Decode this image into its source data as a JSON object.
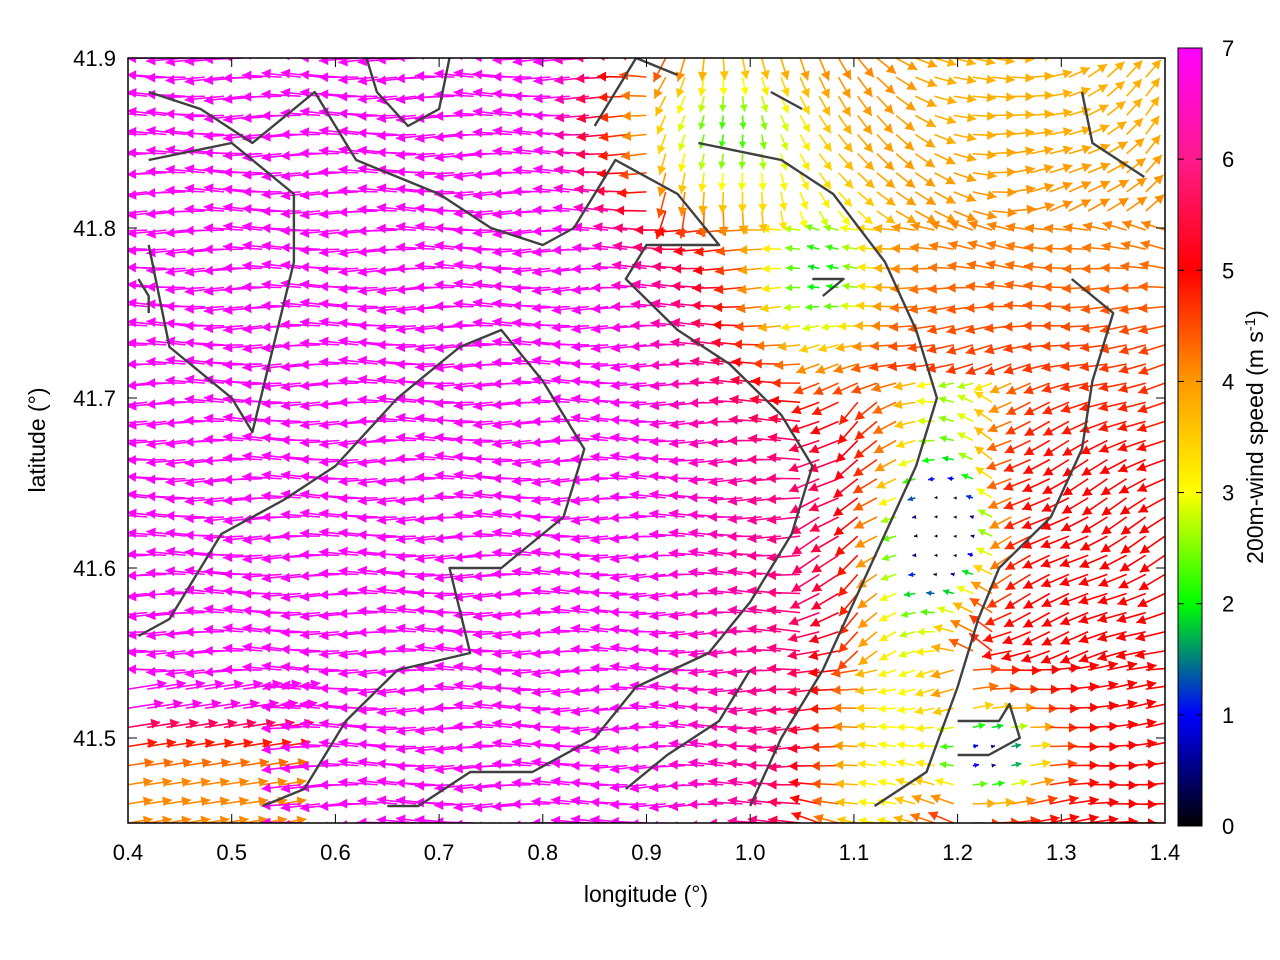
{
  "chart_data": {
    "type": "quiver",
    "title": "",
    "xlabel": "longitude (°)",
    "ylabel": "latitude (°)",
    "xlim": [
      0.4,
      1.4
    ],
    "ylim": [
      41.45,
      41.9
    ],
    "xticks": [
      0.4,
      0.5,
      0.6,
      0.7,
      0.8,
      0.9,
      1.0,
      1.1,
      1.2,
      1.3,
      1.4
    ],
    "xtick_labels": [
      "0.4",
      "0.5",
      "0.6",
      "0.7",
      "0.8",
      "0.9",
      "1.0",
      "1.1",
      "1.2",
      "1.3",
      "1.4"
    ],
    "yticks": [
      41.5,
      41.6,
      41.7,
      41.8,
      41.9
    ],
    "ytick_labels": [
      "41.5",
      "41.6",
      "41.7",
      "41.8",
      "41.9"
    ],
    "grid": false,
    "colorbar": {
      "label_main": "200m-wind speed (m s",
      "label_sup": "-1",
      "label_end": ")",
      "range": [
        0,
        7
      ],
      "ticks": [
        0,
        1,
        2,
        3,
        4,
        5,
        6,
        7
      ],
      "tick_labels": [
        "0",
        "1",
        "2",
        "3",
        "4",
        "5",
        "6",
        "7"
      ],
      "colors": [
        "#000000",
        "#0000ff",
        "#00ff00",
        "#ffff00",
        "#ff9900",
        "#ff0000",
        "#ff00ff"
      ]
    },
    "contour_color": "#404040",
    "wind_field_note_unused": null,
    "calm_zones": [
      {
        "lon": 1.19,
        "lat": 41.62,
        "r_lon": 0.045,
        "r_lat": 0.035
      },
      {
        "lon": 1.23,
        "lat": 41.49,
        "r_lon": 0.04,
        "r_lat": 0.025
      }
    ],
    "slow_zones": [
      {
        "lon": 0.97,
        "lat": 41.86,
        "r_lon": 0.09,
        "r_lat": 0.05
      },
      {
        "lon": 1.07,
        "lat": 41.77,
        "r_lon": 0.06,
        "r_lat": 0.05
      }
    ],
    "contours": [
      [
        [
          0.41,
          41.56
        ],
        [
          0.44,
          41.57
        ],
        [
          0.49,
          41.62
        ],
        [
          0.55,
          41.64
        ],
        [
          0.6,
          41.66
        ],
        [
          0.66,
          41.7
        ],
        [
          0.72,
          41.73
        ],
        [
          0.76,
          41.74
        ],
        [
          0.8,
          41.71
        ],
        [
          0.84,
          41.67
        ],
        [
          0.82,
          41.63
        ],
        [
          0.76,
          41.6
        ],
        [
          0.71,
          41.6
        ],
        [
          0.73,
          41.55
        ],
        [
          0.66,
          41.54
        ],
        [
          0.61,
          41.51
        ],
        [
          0.57,
          41.47
        ],
        [
          0.53,
          41.46
        ]
      ],
      [
        [
          0.42,
          41.84
        ],
        [
          0.5,
          41.85
        ],
        [
          0.56,
          41.82
        ],
        [
          0.56,
          41.78
        ],
        [
          0.54,
          41.73
        ],
        [
          0.52,
          41.68
        ],
        [
          0.5,
          41.7
        ],
        [
          0.44,
          41.73
        ],
        [
          0.42,
          41.79
        ]
      ],
      [
        [
          0.42,
          41.88
        ],
        [
          0.47,
          41.87
        ],
        [
          0.52,
          41.85
        ],
        [
          0.58,
          41.88
        ],
        [
          0.62,
          41.84
        ],
        [
          0.7,
          41.82
        ],
        [
          0.75,
          41.8
        ],
        [
          0.8,
          41.79
        ],
        [
          0.83,
          41.8
        ],
        [
          0.87,
          41.84
        ],
        [
          0.93,
          41.82
        ],
        [
          0.97,
          41.79
        ],
        [
          0.9,
          41.79
        ],
        [
          0.88,
          41.77
        ],
        [
          0.93,
          41.74
        ],
        [
          0.98,
          41.72
        ],
        [
          1.03,
          41.69
        ],
        [
          1.06,
          41.66
        ],
        [
          1.04,
          41.62
        ],
        [
          1.0,
          41.58
        ],
        [
          0.96,
          41.55
        ],
        [
          0.89,
          41.53
        ],
        [
          0.85,
          41.5
        ],
        [
          0.79,
          41.48
        ],
        [
          0.73,
          41.48
        ],
        [
          0.68,
          41.46
        ],
        [
          0.65,
          41.46
        ]
      ],
      [
        [
          0.63,
          41.9
        ],
        [
          0.64,
          41.88
        ],
        [
          0.67,
          41.86
        ],
        [
          0.7,
          41.87
        ],
        [
          0.71,
          41.9
        ]
      ],
      [
        [
          0.85,
          41.86
        ],
        [
          0.89,
          41.9
        ],
        [
          0.93,
          41.89
        ]
      ],
      [
        [
          0.95,
          41.85
        ],
        [
          1.03,
          41.84
        ],
        [
          1.08,
          41.82
        ],
        [
          1.13,
          41.78
        ],
        [
          1.16,
          41.74
        ],
        [
          1.18,
          41.7
        ],
        [
          1.16,
          41.66
        ],
        [
          1.13,
          41.62
        ],
        [
          1.1,
          41.58
        ],
        [
          1.07,
          41.54
        ],
        [
          1.03,
          41.5
        ],
        [
          1.0,
          41.46
        ]
      ],
      [
        [
          1.06,
          41.77
        ],
        [
          1.09,
          41.77
        ],
        [
          1.07,
          41.76
        ]
      ],
      [
        [
          1.31,
          41.77
        ],
        [
          1.35,
          41.75
        ],
        [
          1.33,
          41.71
        ],
        [
          1.32,
          41.67
        ],
        [
          1.29,
          41.63
        ],
        [
          1.24,
          41.6
        ],
        [
          1.22,
          41.57
        ],
        [
          1.2,
          41.53
        ],
        [
          1.17,
          41.48
        ],
        [
          1.12,
          41.46
        ]
      ],
      [
        [
          1.2,
          41.51
        ],
        [
          1.24,
          41.51
        ],
        [
          1.25,
          41.52
        ],
        [
          1.26,
          41.5
        ],
        [
          1.23,
          41.49
        ],
        [
          1.2,
          41.49
        ]
      ],
      [
        [
          0.88,
          41.47
        ],
        [
          0.92,
          41.49
        ],
        [
          0.97,
          41.51
        ],
        [
          1.0,
          41.54
        ]
      ],
      [
        [
          1.32,
          41.88
        ],
        [
          1.33,
          41.85
        ],
        [
          1.38,
          41.83
        ]
      ],
      [
        [
          1.02,
          41.88
        ],
        [
          1.05,
          41.87
        ]
      ],
      [
        [
          0.41,
          41.77
        ],
        [
          0.42,
          41.76
        ],
        [
          0.42,
          41.75
        ]
      ]
    ]
  }
}
